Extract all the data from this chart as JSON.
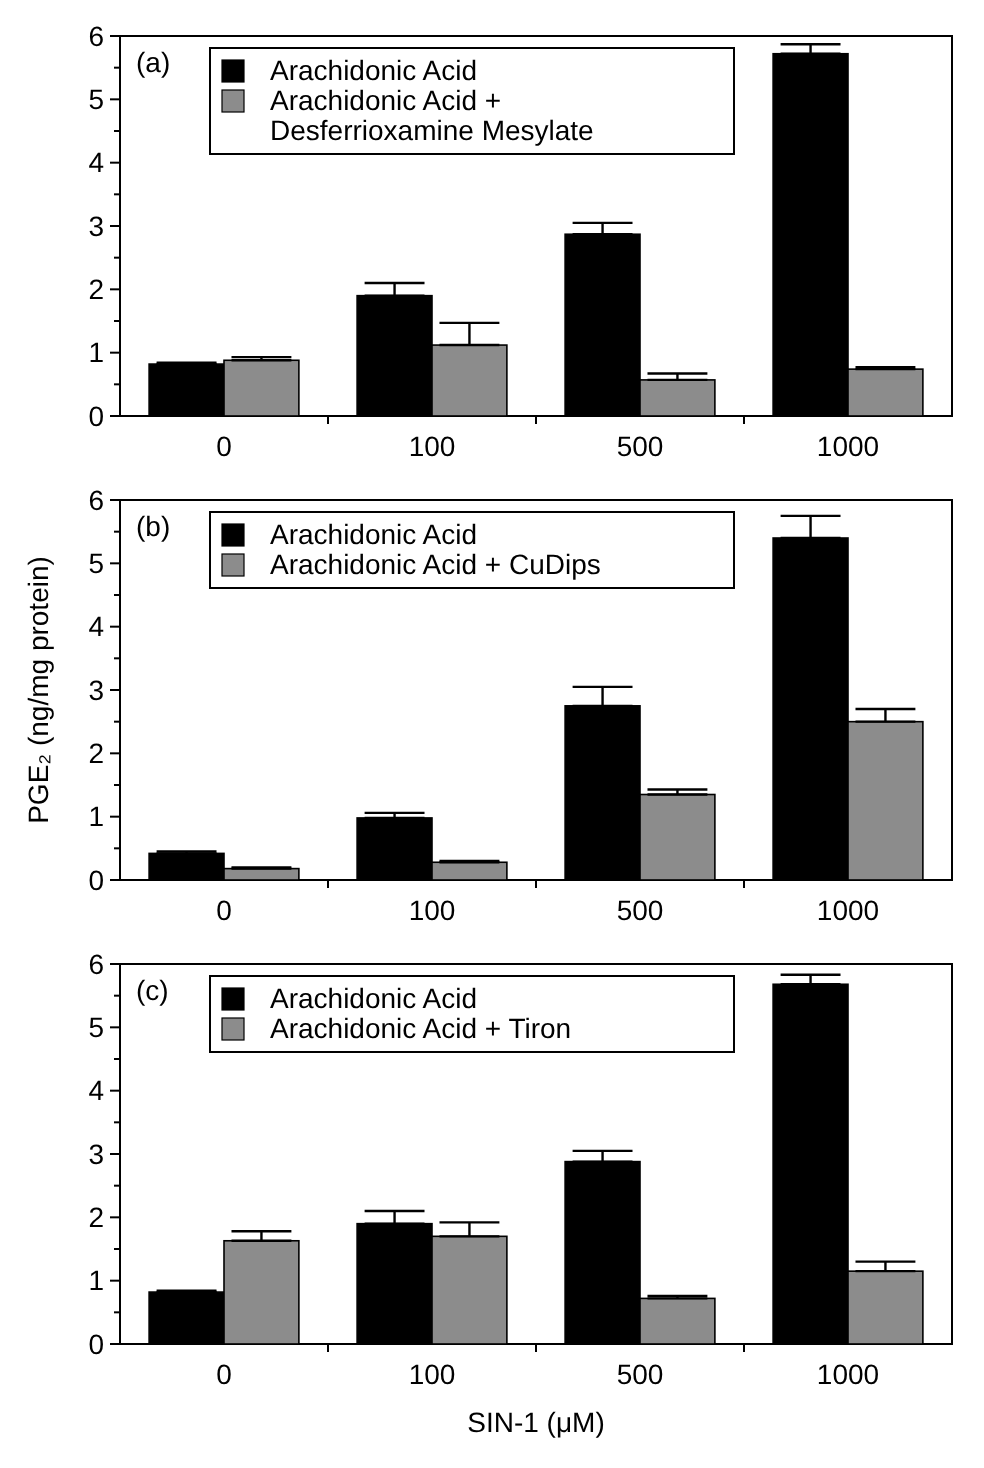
{
  "chart_data": [
    {
      "type": "bar",
      "title": "(a)",
      "categories": [
        "0",
        "100",
        "500",
        "1000"
      ],
      "ylim": [
        0,
        6
      ],
      "yticks": [
        0,
        {
          "value": 0.5,
          "label": null
        },
        1,
        {
          "value": 1.5,
          "label": null
        },
        2,
        {
          "value": 2.5,
          "label": null
        },
        3,
        {
          "value": 3.5,
          "label": null
        },
        4,
        {
          "value": 4.5,
          "label": null
        },
        5,
        {
          "value": 5.5,
          "label": null
        },
        6
      ],
      "legend": "top left",
      "grid": false,
      "series": [
        {
          "name": "Arachidonic Acid",
          "color": "#000000",
          "values": [
            0.82,
            1.9,
            2.87,
            5.72
          ],
          "errors": [
            [
              0.82,
              0.84
            ],
            [
              1.9,
              2.1
            ],
            [
              2.87,
              3.05
            ],
            [
              5.72,
              5.87
            ]
          ]
        },
        {
          "name": "Arachidonic Acid + Desferrioxamine Mesylate",
          "color": "#8c8c8c",
          "values": [
            0.88,
            1.12,
            0.57,
            0.74
          ],
          "errors": [
            [
              0.88,
              0.93
            ],
            [
              1.12,
              1.47
            ],
            [
              0.57,
              0.67
            ],
            [
              0.74,
              0.77
            ]
          ]
        }
      ]
    },
    {
      "type": "bar",
      "title": "(b)",
      "ylabel": "PGE₂ (ng/mg protein)",
      "categories": [
        "0",
        "100",
        "500",
        "1000"
      ],
      "ylim": [
        0,
        6
      ],
      "yticks": [
        0,
        {
          "value": 0.5,
          "label": null
        },
        1,
        {
          "value": 1.5,
          "label": null
        },
        2,
        {
          "value": 2.5,
          "label": null
        },
        3,
        {
          "value": 3.5,
          "label": null
        },
        4,
        {
          "value": 4.5,
          "label": null
        },
        5,
        {
          "value": 5.5,
          "label": null
        },
        6
      ],
      "legend": "top left",
      "grid": false,
      "series": [
        {
          "name": "Arachidonic Acid",
          "color": "#000000",
          "values": [
            0.42,
            0.98,
            2.75,
            5.4
          ],
          "errors": [
            [
              0.42,
              0.45
            ],
            [
              0.98,
              1.06
            ],
            [
              2.75,
              3.05
            ],
            [
              5.4,
              5.75
            ]
          ]
        },
        {
          "name": "Arachidonic Acid + CuDips",
          "color": "#8c8c8c",
          "values": [
            0.18,
            0.28,
            1.35,
            2.5
          ],
          "errors": [
            [
              0.18,
              0.2
            ],
            [
              0.28,
              0.3
            ],
            [
              1.35,
              1.43
            ],
            [
              2.5,
              2.7
            ]
          ]
        }
      ]
    },
    {
      "type": "bar",
      "title": "(c)",
      "xlabel": "SIN-1 (μM)",
      "categories": [
        "0",
        "100",
        "500",
        "1000"
      ],
      "ylim": [
        0,
        6
      ],
      "yticks": [
        0,
        {
          "value": 0.5,
          "label": null
        },
        1,
        {
          "value": 1.5,
          "label": null
        },
        2,
        {
          "value": 2.5,
          "label": null
        },
        3,
        {
          "value": 3.5,
          "label": null
        },
        4,
        {
          "value": 4.5,
          "label": null
        },
        5,
        {
          "value": 5.5,
          "label": null
        },
        6
      ],
      "legend": "top left",
      "grid": false,
      "series": [
        {
          "name": "Arachidonic Acid",
          "color": "#000000",
          "values": [
            0.82,
            1.9,
            2.88,
            5.68
          ],
          "errors": [
            [
              0.82,
              0.84
            ],
            [
              1.9,
              2.1
            ],
            [
              2.88,
              3.05
            ],
            [
              5.68,
              5.83
            ]
          ]
        },
        {
          "name": "Arachidonic Acid + Tiron",
          "color": "#8c8c8c",
          "values": [
            1.63,
            1.7,
            0.72,
            1.15
          ],
          "errors": [
            [
              1.63,
              1.78
            ],
            [
              1.7,
              1.92
            ],
            [
              0.72,
              0.76
            ],
            [
              1.15,
              1.3
            ]
          ]
        }
      ]
    }
  ]
}
